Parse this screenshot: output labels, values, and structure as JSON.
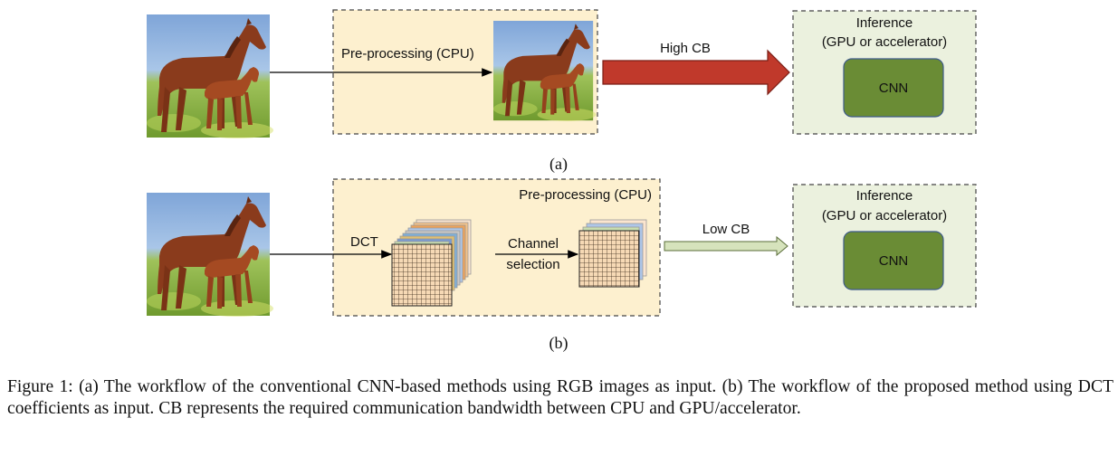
{
  "panel_a": {
    "preprocess_label": "Pre-processing (CPU)",
    "arrow_label": "High CB",
    "inference_title_line1": "Inference",
    "inference_title_line2": "(GPU or accelerator)",
    "cnn_label": "CNN",
    "sublabel": "(a)"
  },
  "panel_b": {
    "preprocess_label": "Pre-processing (CPU)",
    "dct_label": "DCT",
    "channel_label_line1": "Channel",
    "channel_label_line2": "selection",
    "arrow_label": "Low CB",
    "inference_title_line1": "Inference",
    "inference_title_line2": "(GPU or accelerator)",
    "cnn_label": "CNN",
    "sublabel": "(b)"
  },
  "caption": "Figure 1: (a) The workflow of the conventional CNN-based methods using RGB images as input. (b) The workflow of the proposed method using DCT coefficients as input. CB represents the required communication bandwidth between CPU and GPU/accelerator.",
  "colors": {
    "cpu_box_fill": "#fdf0cf",
    "gpu_box_fill": "#ebf1de",
    "cnn_fill": "#6a8c35",
    "high_cb_arrow": "#c0392b",
    "low_cb_arrow": "#d6e3bc",
    "sky": "#8fb3e0",
    "grass": "#8ab63a"
  },
  "icons": [
    "horse-photo-icon",
    "dct-channel-stack-icon"
  ]
}
